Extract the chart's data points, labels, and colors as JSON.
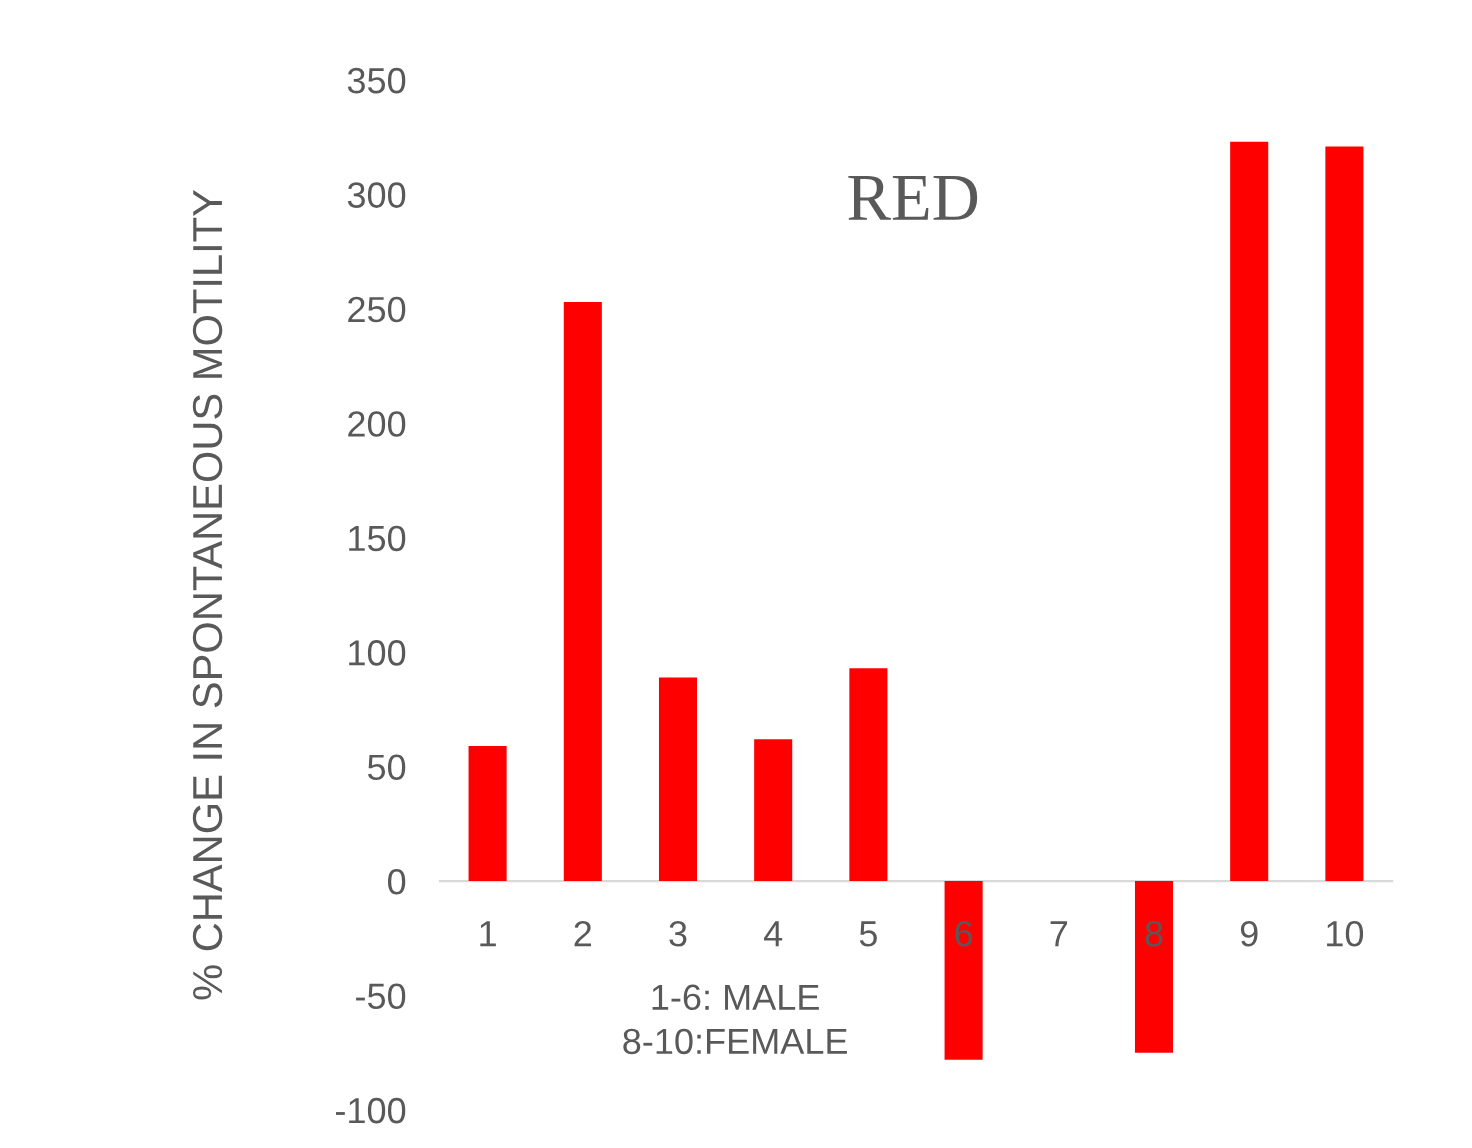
{
  "chart_data": {
    "type": "bar",
    "title": "RED",
    "ylabel": "% CHANGE IN SPONTANEOUS MOTILITY",
    "categories": [
      "1",
      "2",
      "3",
      "4",
      "5",
      "6",
      "7",
      "8",
      "9",
      "10"
    ],
    "values": [
      59,
      253,
      89,
      62,
      93,
      -78,
      null,
      -75,
      323,
      321
    ],
    "color": "#ff0000",
    "ylim": [
      -100,
      350
    ],
    "yticks": [
      -100,
      -50,
      0,
      50,
      100,
      150,
      200,
      250,
      300,
      350
    ],
    "grid": false,
    "legend": false,
    "annotations": [
      "1-6: MALE\n8-10:FEMALE"
    ]
  }
}
